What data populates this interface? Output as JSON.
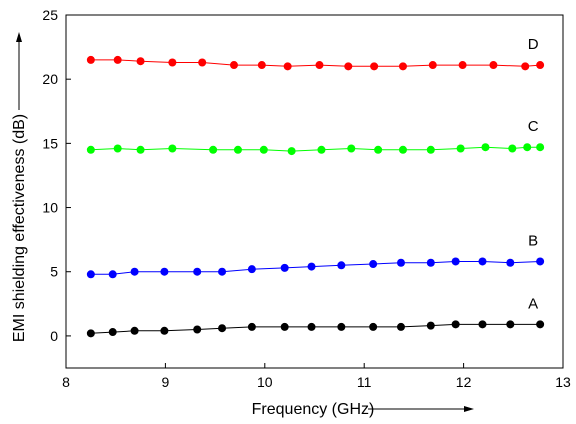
{
  "chart_data": {
    "type": "line",
    "title": "",
    "xlabel": "Frequency (GHz)",
    "ylabel": "EMI shielding effectiveness (dB)",
    "xlim": [
      8,
      13
    ],
    "ylim": [
      -2.5,
      25
    ],
    "x_ticks": [
      8,
      9,
      10,
      11,
      12,
      13
    ],
    "y_ticks": [
      0,
      5,
      10,
      15,
      20,
      25
    ],
    "grid": false,
    "series": [
      {
        "name": "A",
        "color": "#000000",
        "x": [
          8.25,
          8.47,
          8.69,
          8.99,
          9.32,
          9.57,
          9.87,
          10.2,
          10.47,
          10.77,
          11.09,
          11.37,
          11.67,
          11.92,
          12.19,
          12.47,
          12.77
        ],
        "y": [
          0.2,
          0.3,
          0.4,
          0.4,
          0.5,
          0.6,
          0.7,
          0.7,
          0.7,
          0.7,
          0.7,
          0.7,
          0.8,
          0.9,
          0.9,
          0.9,
          0.9
        ]
      },
      {
        "name": "B",
        "color": "#0000ff",
        "x": [
          8.25,
          8.47,
          8.69,
          8.99,
          9.32,
          9.57,
          9.87,
          10.2,
          10.47,
          10.77,
          11.09,
          11.37,
          11.67,
          11.92,
          12.19,
          12.47,
          12.77
        ],
        "y": [
          4.8,
          4.8,
          5.0,
          5.0,
          5.0,
          5.0,
          5.2,
          5.3,
          5.4,
          5.5,
          5.6,
          5.7,
          5.7,
          5.8,
          5.8,
          5.7,
          5.8
        ]
      },
      {
        "name": "C",
        "color": "#00ff00",
        "x": [
          8.25,
          8.52,
          8.75,
          9.07,
          9.48,
          9.73,
          9.99,
          10.27,
          10.57,
          10.87,
          11.14,
          11.39,
          11.67,
          11.97,
          12.22,
          12.49,
          12.64,
          12.77
        ],
        "y": [
          14.5,
          14.6,
          14.5,
          14.6,
          14.5,
          14.5,
          14.5,
          14.4,
          14.5,
          14.6,
          14.5,
          14.5,
          14.5,
          14.6,
          14.7,
          14.6,
          14.7,
          14.7
        ]
      },
      {
        "name": "D",
        "color": "#ff0000",
        "x": [
          8.25,
          8.52,
          8.75,
          9.07,
          9.37,
          9.69,
          9.97,
          10.23,
          10.55,
          10.84,
          11.1,
          11.39,
          11.69,
          11.99,
          12.3,
          12.62,
          12.77
        ],
        "y": [
          21.5,
          21.5,
          21.4,
          21.3,
          21.3,
          21.1,
          21.1,
          21.0,
          21.1,
          21.0,
          21.0,
          21.0,
          21.1,
          21.1,
          21.1,
          21.0,
          21.1
        ]
      }
    ]
  }
}
